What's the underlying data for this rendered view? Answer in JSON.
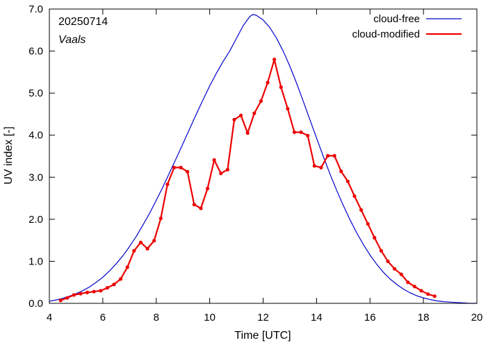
{
  "chart_data": {
    "type": "line",
    "title": "",
    "xlabel": "Time  [UTC]",
    "ylabel": "UV index  [-]",
    "xlim": [
      4,
      20
    ],
    "ylim": [
      0,
      7
    ],
    "xticks": [
      4,
      6,
      8,
      10,
      12,
      14,
      16,
      18,
      20
    ],
    "yticks": [
      0,
      1,
      2,
      3,
      4,
      5,
      6,
      7
    ],
    "ytick_labels": [
      "0.0",
      "1.0",
      "2.0",
      "3.0",
      "4.0",
      "5.0",
      "6.0",
      "7.0"
    ],
    "grid": false,
    "legend_position": "top-right",
    "annotations": [
      {
        "text": "20250714",
        "style": "normal"
      },
      {
        "text": "Vaals",
        "style": "italic"
      }
    ],
    "series": [
      {
        "name": "cloud-free",
        "color": "#0000cc",
        "markers": false,
        "x": [
          4.0,
          4.25,
          4.5,
          4.75,
          5.0,
          5.25,
          5.5,
          5.75,
          6.0,
          6.25,
          6.5,
          6.75,
          7.0,
          7.25,
          7.5,
          7.75,
          8.0,
          8.25,
          8.5,
          8.75,
          9.0,
          9.25,
          9.5,
          9.75,
          10.0,
          10.25,
          10.5,
          10.75,
          11.0,
          11.25,
          11.5,
          11.62,
          11.75,
          12.0,
          12.25,
          12.5,
          12.75,
          13.0,
          13.25,
          13.5,
          13.75,
          14.0,
          14.25,
          14.5,
          14.75,
          15.0,
          15.25,
          15.5,
          15.75,
          16.0,
          16.25,
          16.5,
          16.75,
          17.0,
          17.25,
          17.5,
          17.75,
          18.0,
          18.25,
          18.5,
          18.75,
          19.0,
          19.25,
          19.5,
          19.75,
          20.0
        ],
        "y": [
          0.05,
          0.08,
          0.12,
          0.17,
          0.23,
          0.3,
          0.39,
          0.5,
          0.62,
          0.77,
          0.94,
          1.13,
          1.35,
          1.59,
          1.86,
          2.14,
          2.45,
          2.77,
          3.11,
          3.45,
          3.8,
          4.15,
          4.5,
          4.84,
          5.17,
          5.47,
          5.75,
          6.0,
          6.3,
          6.6,
          6.82,
          6.87,
          6.85,
          6.74,
          6.56,
          6.31,
          6.0,
          5.64,
          5.24,
          4.81,
          4.37,
          3.93,
          3.5,
          3.08,
          2.69,
          2.33,
          1.99,
          1.68,
          1.4,
          1.15,
          0.93,
          0.74,
          0.58,
          0.45,
          0.34,
          0.25,
          0.18,
          0.13,
          0.09,
          0.06,
          0.04,
          0.03,
          0.02,
          0.01,
          0.0,
          0.0
        ]
      },
      {
        "name": "cloud-modified",
        "color": "#ee0000",
        "markers": true,
        "x": [
          4.42,
          4.67,
          4.92,
          5.17,
          5.42,
          5.67,
          5.92,
          6.17,
          6.42,
          6.67,
          6.92,
          7.17,
          7.42,
          7.67,
          7.92,
          8.17,
          8.42,
          8.67,
          8.92,
          9.17,
          9.42,
          9.67,
          9.92,
          10.17,
          10.42,
          10.67,
          10.92,
          11.17,
          11.42,
          11.67,
          11.92,
          12.17,
          12.42,
          12.67,
          12.92,
          13.17,
          13.42,
          13.67,
          13.92,
          14.17,
          14.42,
          14.67,
          14.92,
          15.17,
          15.42,
          15.67,
          15.92,
          16.17,
          16.42,
          16.67,
          16.92,
          17.17,
          17.42,
          17.67,
          17.92,
          18.17,
          18.42
        ],
        "y": [
          0.07,
          0.13,
          0.2,
          0.23,
          0.26,
          0.28,
          0.3,
          0.37,
          0.45,
          0.58,
          0.86,
          1.25,
          1.45,
          1.3,
          1.49,
          2.02,
          2.83,
          3.23,
          3.23,
          3.13,
          2.35,
          2.26,
          2.73,
          3.41,
          3.09,
          3.18,
          4.37,
          4.47,
          4.05,
          4.52,
          4.81,
          5.25,
          5.8,
          5.14,
          4.63,
          4.07,
          4.07,
          3.99,
          3.27,
          3.23,
          3.51,
          3.51,
          3.14,
          2.9,
          2.55,
          2.22,
          1.89,
          1.56,
          1.25,
          1.0,
          0.82,
          0.69,
          0.5,
          0.4,
          0.3,
          0.22,
          0.17
        ]
      }
    ]
  }
}
